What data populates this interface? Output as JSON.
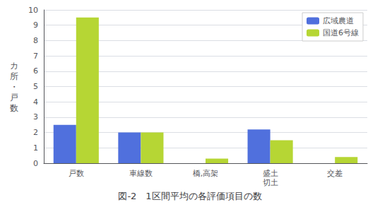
{
  "chart_data": {
    "type": "bar",
    "title": "図-2　1区間平均の各評価項目の数",
    "ylabel": "カ所・戸数",
    "categories": [
      "戸数",
      "車線数",
      "橋,高架",
      "盛土\n切土",
      "交差"
    ],
    "series": [
      {
        "name": "広域農道",
        "values": [
          2.5,
          2.0,
          0.0,
          2.2,
          0.0
        ]
      },
      {
        "name": "国道6号線",
        "values": [
          9.5,
          2.0,
          0.3,
          1.5,
          0.4
        ]
      }
    ],
    "ylim": [
      0,
      10
    ],
    "yticks": [
      0,
      1,
      2,
      3,
      4,
      5,
      6,
      7,
      8,
      9,
      10
    ],
    "grid": true,
    "legend": "upper right"
  }
}
